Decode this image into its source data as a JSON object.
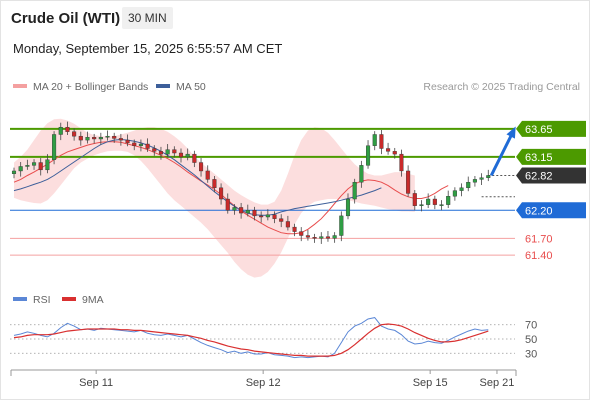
{
  "header": {
    "title": "Crude Oil (WTI)",
    "interval": "30 MIN",
    "datetime": "Monday, September 15, 2025 6:55:57 AM CET"
  },
  "colors": {
    "green": "#4c9a00",
    "blue": "#1f6bd6",
    "red": "#e84d4d",
    "pink_line": "#f4a0a0",
    "band_fill": "#fcd8d8",
    "ma50": "#3d5f9a",
    "dark_label": "#333333",
    "rsi": "#5b87d6",
    "rsi_ma": "#d93030"
  },
  "chart_data": [
    {
      "type": "candlestick",
      "legend": [
        {
          "name": "MA 20 + Bollinger Bands",
          "color": "#f4a0a0"
        },
        {
          "name": "MA 50",
          "color": "#3d5f9a"
        }
      ],
      "watermark": "Research © 2025 Trading Central",
      "ylim": [
        61.1,
        64.2
      ],
      "x_ticks": [
        {
          "label": "Sep 11",
          "i": 12
        },
        {
          "label": "Sep 12",
          "i": 37
        },
        {
          "label": "Sep 15",
          "i": 62
        },
        {
          "label": "Sep 21",
          "i": 72
        }
      ],
      "n_slots": 75,
      "levels": [
        {
          "value": 63.65,
          "label": "63.65",
          "style": "green",
          "tag": "fill"
        },
        {
          "value": 63.15,
          "label": "63.15",
          "style": "green",
          "tag": "fill"
        },
        {
          "value": 62.82,
          "label": "62.82",
          "style": "dark",
          "tag": "fill"
        },
        {
          "value": 62.2,
          "label": "62.20",
          "style": "blue",
          "tag": "fill"
        },
        {
          "value": 61.7,
          "label": "61.70",
          "style": "red",
          "tag": "text"
        },
        {
          "value": 61.4,
          "label": "61.40",
          "style": "red",
          "tag": "text"
        }
      ],
      "close": [
        62.9,
        62.98,
        63.0,
        63.05,
        62.92,
        63.1,
        63.55,
        63.68,
        63.6,
        63.52,
        63.45,
        63.5,
        63.47,
        63.5,
        63.52,
        63.48,
        63.45,
        63.4,
        63.35,
        63.38,
        63.3,
        63.25,
        63.2,
        63.28,
        63.22,
        63.15,
        63.2,
        63.05,
        62.9,
        62.75,
        62.6,
        62.4,
        62.2,
        62.25,
        62.15,
        62.2,
        62.1,
        62.08,
        62.12,
        62.05,
        62.0,
        61.9,
        61.82,
        61.75,
        61.72,
        61.7,
        61.73,
        61.7,
        61.75,
        62.1,
        62.4,
        62.7,
        63.0,
        63.35,
        63.55,
        63.3,
        63.25,
        63.2,
        62.9,
        62.5,
        62.28,
        62.3,
        62.4,
        62.3,
        62.3,
        62.45,
        62.55,
        62.6,
        62.7,
        62.75,
        62.78,
        62.82
      ],
      "ma20": [
        62.7,
        62.75,
        62.82,
        62.88,
        62.95,
        63.02,
        63.1,
        63.18,
        63.24,
        63.28,
        63.32,
        63.36,
        63.39,
        63.41,
        63.42,
        63.42,
        63.41,
        63.38,
        63.35,
        63.32,
        63.28,
        63.23,
        63.18,
        63.12,
        63.05,
        62.97,
        62.88,
        62.8,
        62.72,
        62.65,
        62.57,
        62.48,
        62.38,
        62.28,
        62.19,
        62.11,
        62.04,
        61.97,
        61.9,
        61.85,
        61.8,
        61.78,
        61.78,
        61.8,
        61.86,
        61.95,
        62.05,
        62.18,
        62.32,
        62.46,
        62.58,
        62.67,
        62.72,
        62.74,
        62.73,
        62.7,
        62.64,
        62.56,
        62.49,
        62.44,
        62.41,
        62.41,
        62.44,
        62.5,
        62.58,
        62.64
      ],
      "bb_upper": [
        63.05,
        63.15,
        63.28,
        63.45,
        63.62,
        63.75,
        63.82,
        63.83,
        63.8,
        63.74,
        63.66,
        63.58,
        63.54,
        63.52,
        63.52,
        63.52,
        63.55,
        63.58,
        63.62,
        63.66,
        63.68,
        63.68,
        63.65,
        63.6,
        63.52,
        63.42,
        63.3,
        63.16,
        63.05,
        62.95,
        62.85,
        62.75,
        62.65,
        62.55,
        62.47,
        62.4,
        62.34,
        62.3,
        62.3,
        62.35,
        62.55,
        62.85,
        63.18,
        63.45,
        63.62,
        63.68,
        63.66,
        63.58,
        63.45,
        63.3,
        63.15,
        63.02,
        62.92,
        62.85,
        62.82,
        62.82,
        62.85,
        62.88,
        62.88,
        62.85,
        62.82
      ],
      "bb_lower": [
        62.42,
        62.38,
        62.35,
        62.33,
        62.32,
        62.38,
        62.5,
        62.65,
        62.8,
        62.95,
        63.05,
        63.12,
        63.18,
        63.22,
        63.25,
        63.26,
        63.26,
        63.24,
        63.18,
        63.08,
        62.95,
        62.8,
        62.65,
        62.5,
        62.38,
        62.28,
        62.18,
        62.08,
        61.98,
        61.86,
        61.72,
        61.58,
        61.44,
        61.28,
        61.15,
        61.05,
        61.0,
        61.02,
        61.1,
        61.25,
        61.45,
        61.7,
        61.95,
        62.15,
        62.28,
        62.35,
        62.38,
        62.4,
        62.4,
        62.4,
        62.38,
        62.35,
        62.32,
        62.3,
        62.28,
        62.25,
        62.22,
        62.2,
        62.18,
        62.18,
        62.17
      ],
      "ma50": [
        62.55,
        62.58,
        62.62,
        62.66,
        62.7,
        62.75,
        62.82,
        62.9,
        62.98,
        63.06,
        63.14,
        63.22,
        63.3,
        63.37,
        63.42,
        63.45,
        63.46,
        63.45,
        63.43,
        63.4,
        63.36,
        63.31,
        63.25,
        63.18,
        63.1,
        63.01,
        62.92,
        62.83,
        62.73,
        62.63,
        62.53,
        62.44,
        62.35,
        62.27,
        62.2,
        62.15,
        62.12,
        62.11,
        62.11,
        62.13,
        62.17,
        62.2,
        62.23,
        62.25,
        62.27,
        62.29,
        62.31,
        62.33,
        62.35,
        62.38,
        62.41,
        62.44,
        62.47,
        62.51,
        62.55,
        62.6
      ],
      "forecast": {
        "from_i": 71,
        "from": 62.82,
        "to_i": 75,
        "to": 63.65
      },
      "x_range_i": [
        0,
        75
      ]
    },
    {
      "type": "line",
      "legend": [
        {
          "name": "RSI",
          "color": "#5b87d6"
        },
        {
          "name": "9MA",
          "color": "#d93030"
        }
      ],
      "ylim": [
        15,
        85
      ],
      "y_ticks": [
        30,
        50,
        70
      ],
      "rsi": [
        55,
        57,
        60,
        58,
        55,
        53,
        58,
        66,
        72,
        68,
        63,
        64,
        62,
        65,
        64,
        63,
        62,
        61,
        60,
        62,
        58,
        56,
        55,
        57,
        55,
        53,
        55,
        50,
        45,
        41,
        38,
        35,
        31,
        33,
        30,
        32,
        29,
        29,
        31,
        28,
        27,
        26,
        24,
        25,
        24,
        25,
        26,
        25,
        30,
        45,
        60,
        68,
        72,
        78,
        80,
        68,
        64,
        62,
        56,
        47,
        43,
        44,
        47,
        45,
        44,
        48,
        53,
        57,
        61,
        64,
        62,
        63
      ],
      "ma9": [
        52,
        53,
        55,
        56,
        56,
        56,
        57,
        59,
        61,
        62,
        63,
        64,
        64,
        64,
        64,
        64,
        63,
        63,
        62,
        62,
        61,
        60,
        59,
        58,
        57,
        56,
        55,
        53,
        51,
        48,
        46,
        43,
        40,
        38,
        36,
        35,
        33,
        32,
        31,
        30,
        29,
        28,
        27,
        27,
        26,
        26,
        26,
        26,
        27,
        30,
        35,
        42,
        50,
        58,
        65,
        70,
        71,
        70,
        68,
        64,
        59,
        55,
        51,
        48,
        46,
        46,
        47,
        49,
        52,
        55,
        58,
        61
      ]
    }
  ]
}
